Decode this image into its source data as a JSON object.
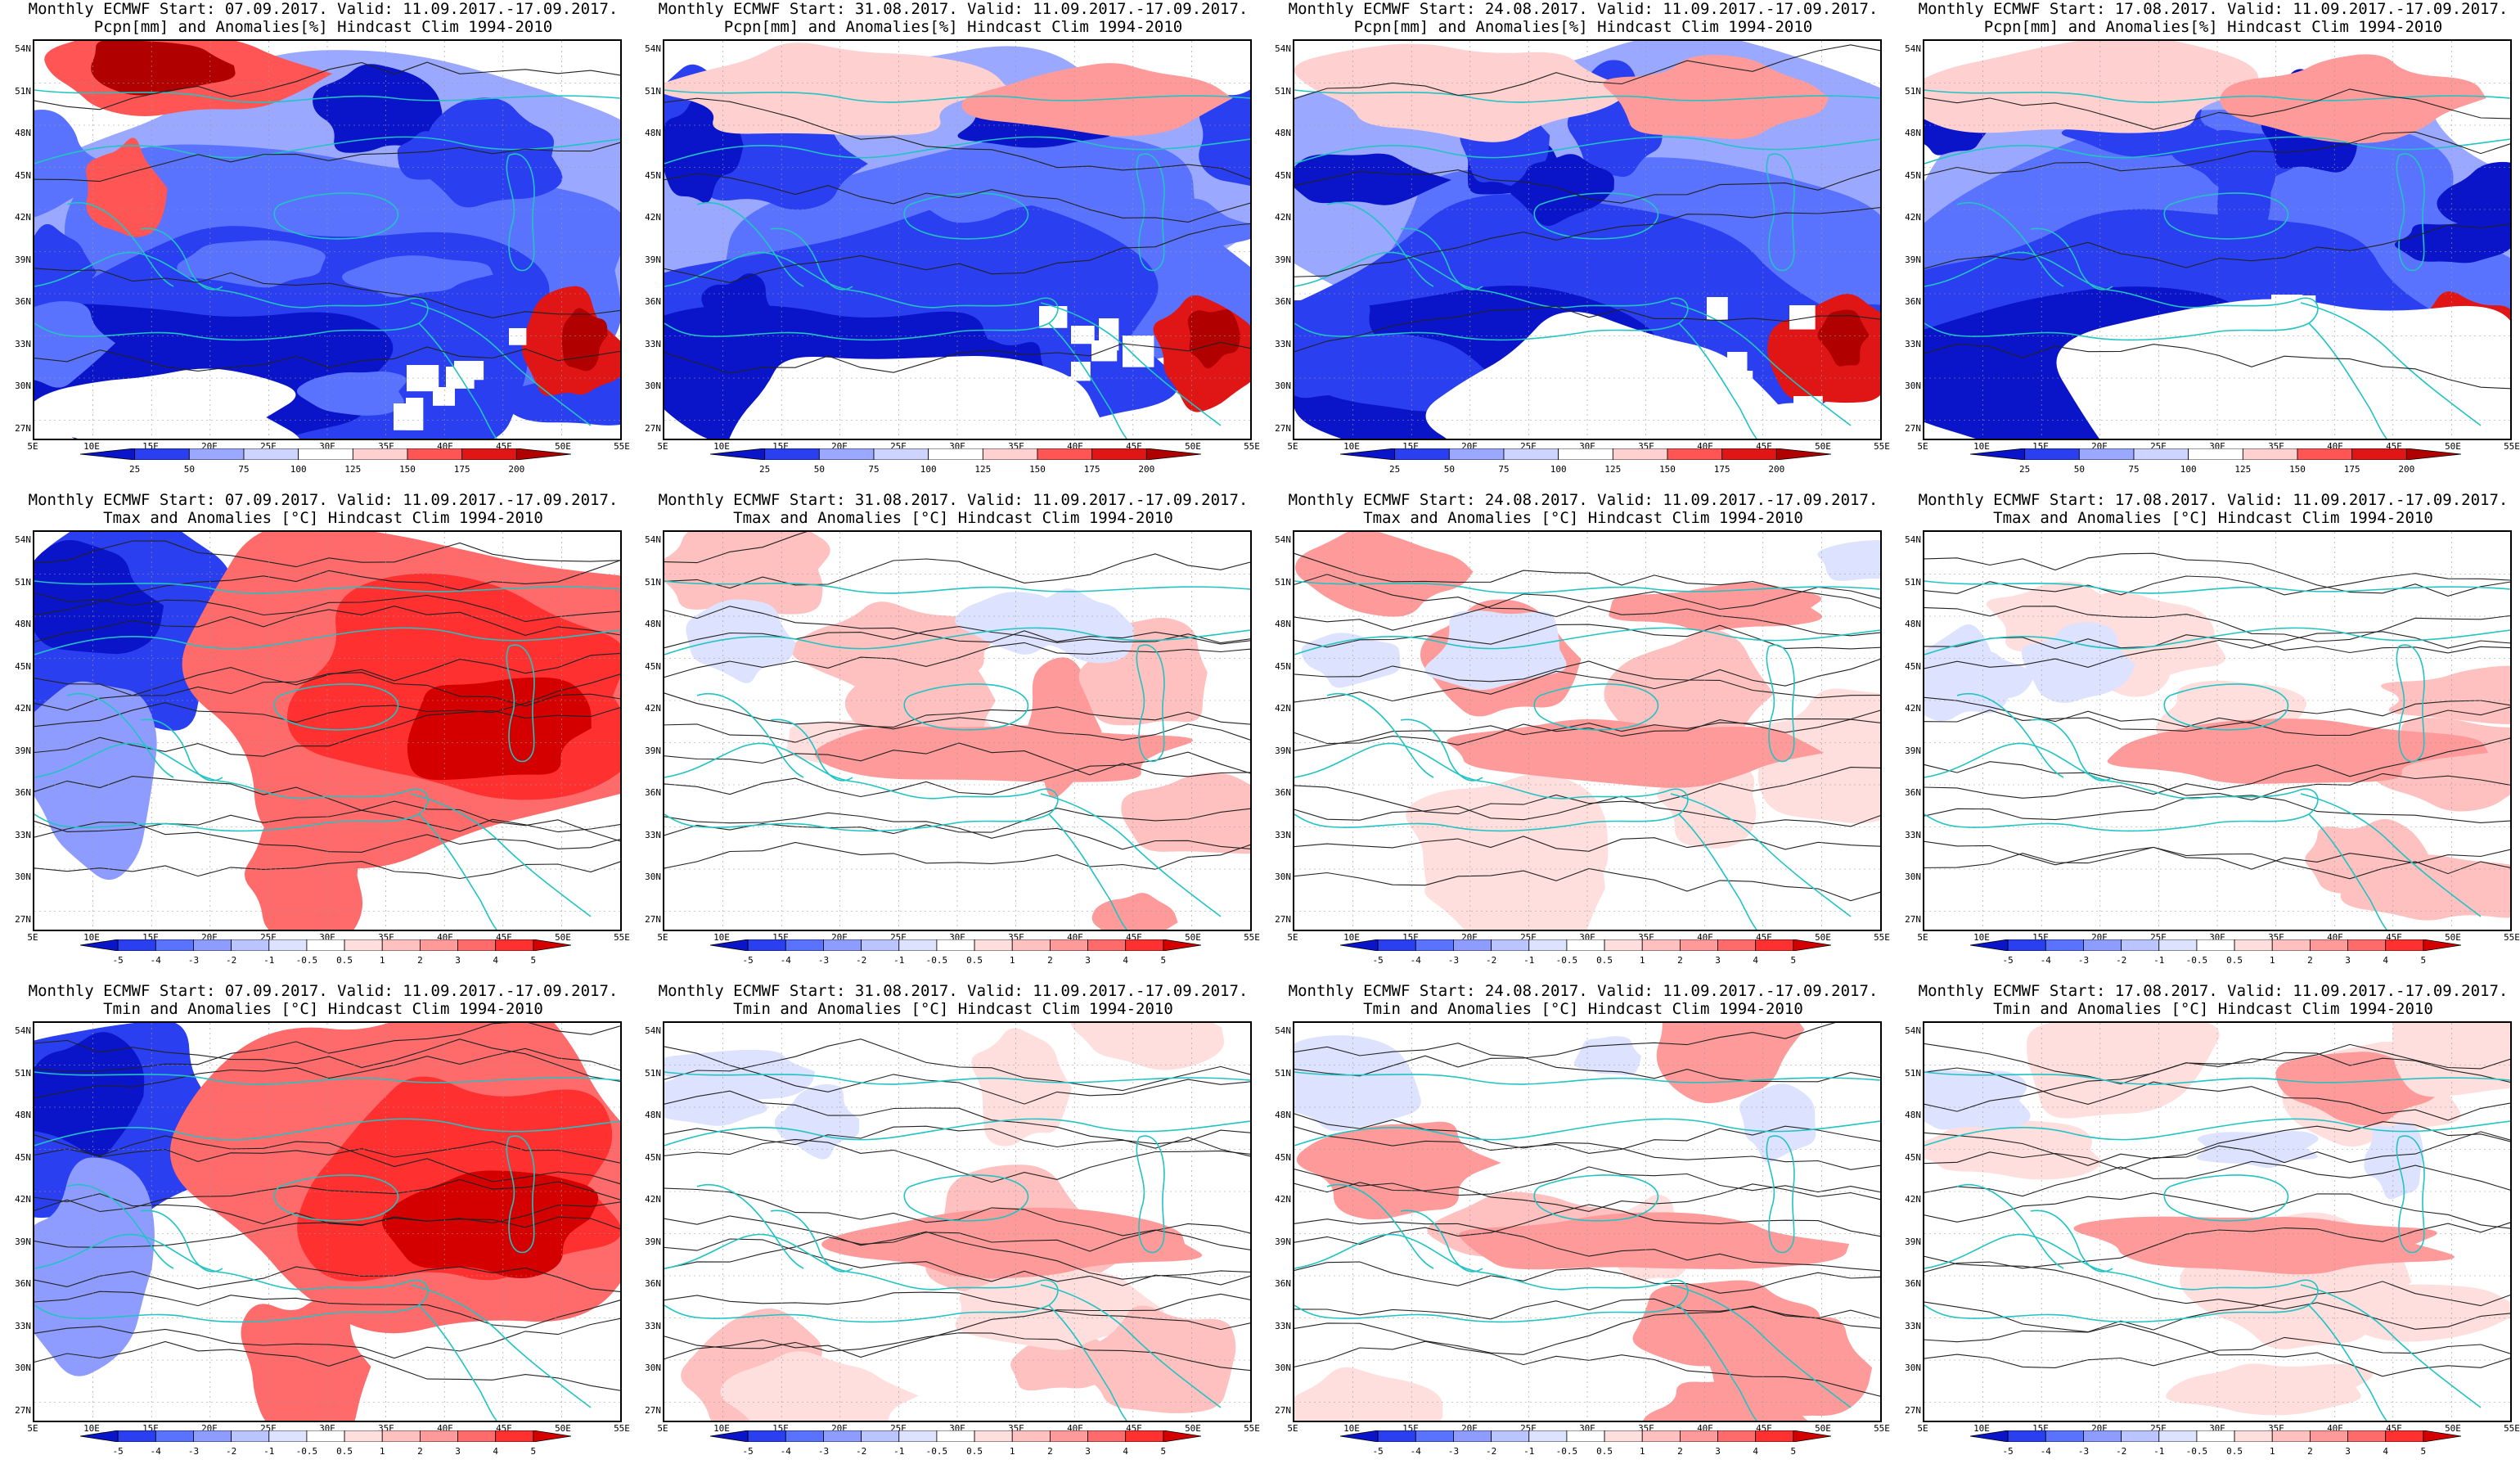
{
  "colors": {
    "coast": "#22c3c3",
    "contour": "#222222",
    "pcpn_scale": [
      "#0a14c8",
      "#2a3ff0",
      "#5a73ff",
      "#9aa8ff",
      "#cdd4ff",
      "#ffffff",
      "#ffd0d0",
      "#ff9a9a",
      "#ff5555",
      "#e01515",
      "#b00000"
    ],
    "temp_scale": [
      "#0a14c8",
      "#2a3ff0",
      "#5a73ff",
      "#8e9cff",
      "#bac4ff",
      "#dde2ff",
      "#ffffff",
      "#ffdede",
      "#ffc0c0",
      "#ff9a9a",
      "#ff6b6b",
      "#ff3030",
      "#d40000"
    ]
  },
  "axes": {
    "lon_ticks": [
      "5E",
      "10E",
      "15E",
      "20E",
      "25E",
      "30E",
      "35E",
      "40E",
      "45E",
      "50E",
      "55E"
    ],
    "lat_ticks": [
      "54N",
      "51N",
      "48N",
      "45N",
      "42N",
      "39N",
      "36N",
      "33N",
      "30N",
      "27N"
    ]
  },
  "rows": [
    {
      "variable": "pcpn",
      "title2": "Pcpn[mm] and Anomalies[%] Hindcast Clim 1994-2010",
      "colorbar_ticks": [
        "25",
        "50",
        "75",
        "100",
        "125",
        "150",
        "175",
        "200"
      ],
      "panels": [
        {
          "title1": "Monthly ECMWF Start: 07.09.2017. Valid: 11.09.2017.-17.09.2017."
        },
        {
          "title1": "Monthly ECMWF Start: 31.08.2017. Valid: 11.09.2017.-17.09.2017."
        },
        {
          "title1": "Monthly ECMWF Start: 24.08.2017. Valid: 11.09.2017.-17.09.2017."
        },
        {
          "title1": "Monthly ECMWF Start: 17.08.2017. Valid: 11.09.2017.-17.09.2017."
        }
      ]
    },
    {
      "variable": "tmax",
      "title2": "Tmax and Anomalies [°C] Hindcast Clim 1994-2010",
      "colorbar_ticks": [
        "-5",
        "-4",
        "-3",
        "-2",
        "-1",
        "-0.5",
        "0.5",
        "1",
        "2",
        "3",
        "4",
        "5"
      ],
      "panels": [
        {
          "title1": "Monthly ECMWF Start: 07.09.2017. Valid: 11.09.2017.-17.09.2017."
        },
        {
          "title1": "Monthly ECMWF Start: 31.08.2017. Valid: 11.09.2017.-17.09.2017."
        },
        {
          "title1": "Monthly ECMWF Start: 24.08.2017. Valid: 11.09.2017.-17.09.2017."
        },
        {
          "title1": "Monthly ECMWF Start: 17.08.2017. Valid: 11.09.2017.-17.09.2017."
        }
      ]
    },
    {
      "variable": "tmin",
      "title2": "Tmin and Anomalies [°C] Hindcast Clim 1994-2010",
      "colorbar_ticks": [
        "-5",
        "-4",
        "-3",
        "-2",
        "-1",
        "-0.5",
        "0.5",
        "1",
        "2",
        "3",
        "4",
        "5"
      ],
      "panels": [
        {
          "title1": "Monthly ECMWF Start: 07.09.2017. Valid: 11.09.2017.-17.09.2017."
        },
        {
          "title1": "Monthly ECMWF Start: 31.08.2017. Valid: 11.09.2017.-17.09.2017."
        },
        {
          "title1": "Monthly ECMWF Start: 24.08.2017. Valid: 11.09.2017.-17.09.2017."
        },
        {
          "title1": "Monthly ECMWF Start: 17.08.2017. Valid: 11.09.2017.-17.09.2017."
        }
      ]
    }
  ]
}
